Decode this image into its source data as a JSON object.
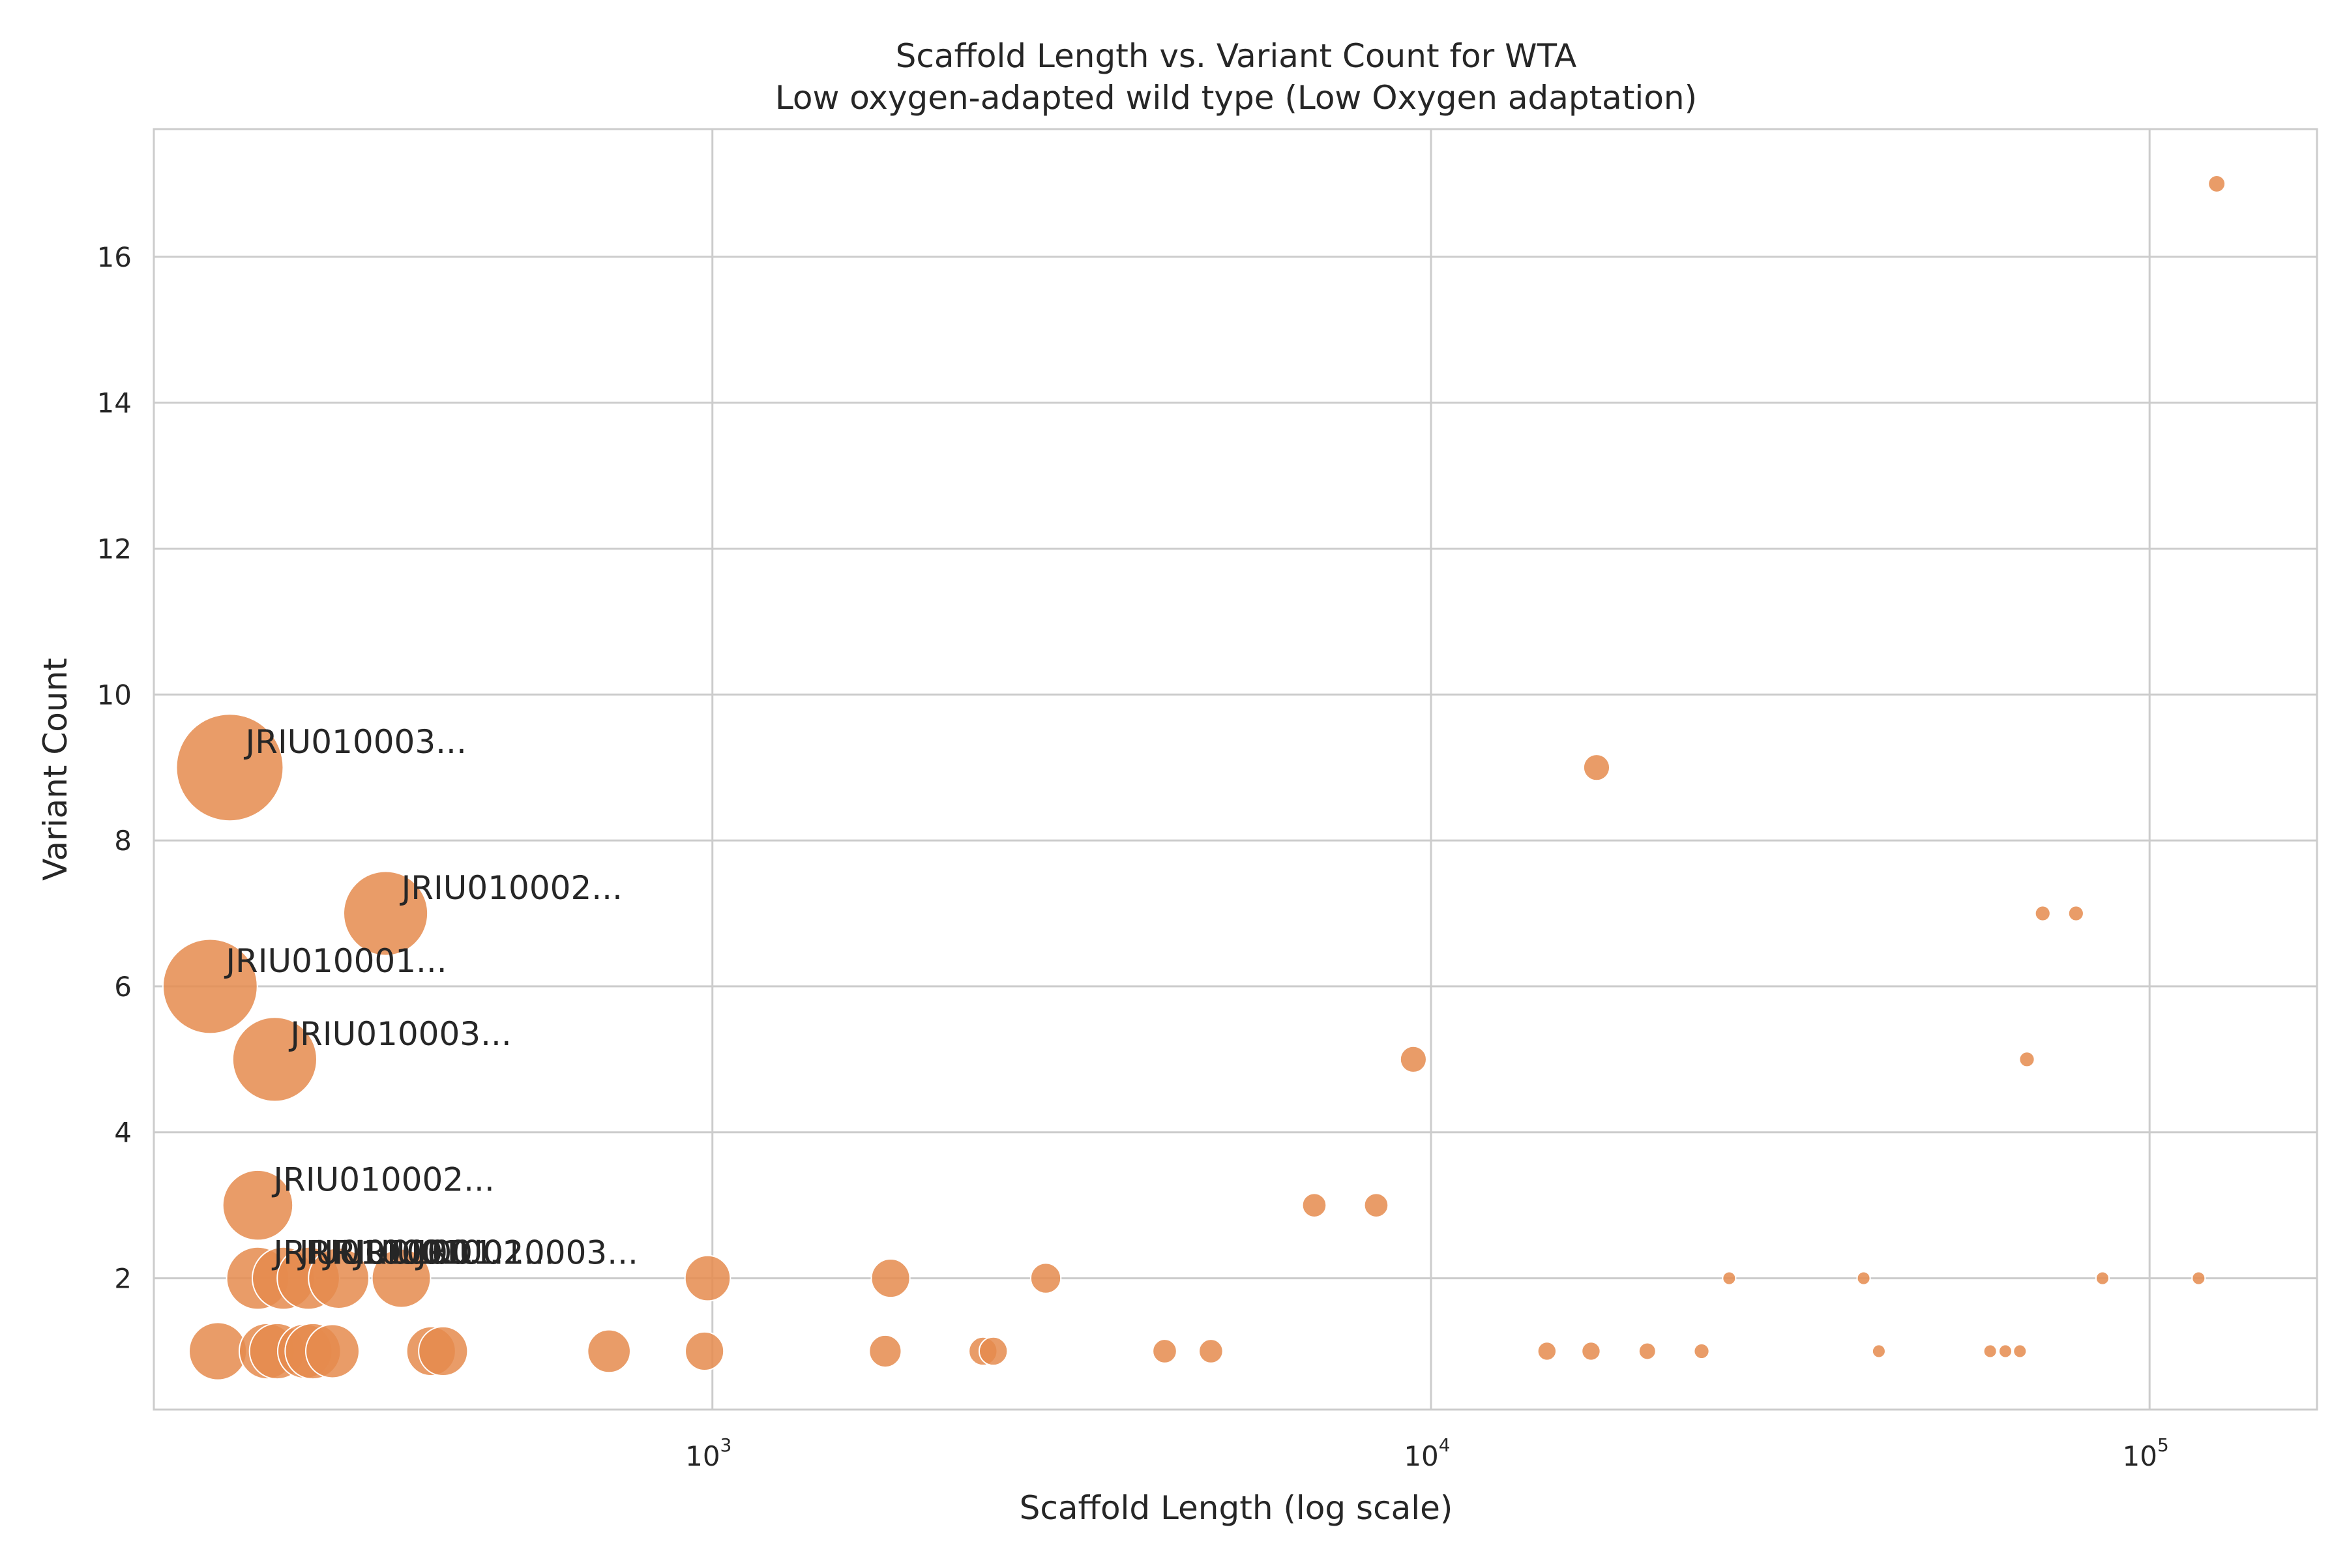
{
  "chart_data": {
    "type": "scatter",
    "title": "Scaffold Length vs. Variant Count for WTA",
    "subtitle": "Low oxygen-adapted wild type (Low Oxygen adaptation)",
    "xlabel": "Scaffold Length (log scale)",
    "ylabel": "Variant Count",
    "x_scale": "log",
    "xlim": [
      167,
      171000
    ],
    "ylim": [
      0.2,
      17.75
    ],
    "x_ticks": [
      {
        "value": 1000,
        "base": "10",
        "exp": "3"
      },
      {
        "value": 10000,
        "base": "10",
        "exp": "4"
      },
      {
        "value": 100000,
        "base": "10",
        "exp": "5"
      }
    ],
    "y_ticks": [
      2,
      4,
      6,
      8,
      10,
      12,
      14,
      16
    ],
    "grid": true,
    "marker_color": "#e58b4d",
    "marker_edge_color": "#ffffff",
    "points": [
      {
        "x": 213,
        "y": 9,
        "size": 1.0
      },
      {
        "x": 351,
        "y": 7,
        "size": 0.62
      },
      {
        "x": 200,
        "y": 6,
        "size": 0.78
      },
      {
        "x": 246,
        "y": 5,
        "size": 0.62
      },
      {
        "x": 233,
        "y": 3,
        "size": 0.43
      },
      {
        "x": 233,
        "y": 2,
        "size": 0.34
      },
      {
        "x": 253,
        "y": 2,
        "size": 0.34
      },
      {
        "x": 274,
        "y": 2,
        "size": 0.34
      },
      {
        "x": 302,
        "y": 2,
        "size": 0.32
      },
      {
        "x": 369,
        "y": 2,
        "size": 0.3
      },
      {
        "x": 985,
        "y": 2,
        "size": 0.18
      },
      {
        "x": 1770,
        "y": 2,
        "size": 0.13
      },
      {
        "x": 2910,
        "y": 2,
        "size": 0.08
      },
      {
        "x": 205,
        "y": 1,
        "size": 0.29
      },
      {
        "x": 240,
        "y": 1,
        "size": 0.27
      },
      {
        "x": 248,
        "y": 1,
        "size": 0.27
      },
      {
        "x": 271,
        "y": 1,
        "size": 0.26
      },
      {
        "x": 278,
        "y": 1,
        "size": 0.27
      },
      {
        "x": 296,
        "y": 1,
        "size": 0.25
      },
      {
        "x": 406,
        "y": 1,
        "size": 0.21
      },
      {
        "x": 422,
        "y": 1,
        "size": 0.21
      },
      {
        "x": 718,
        "y": 1,
        "size": 0.16
      },
      {
        "x": 975,
        "y": 1,
        "size": 0.13
      },
      {
        "x": 1740,
        "y": 1,
        "size": 0.09
      },
      {
        "x": 2380,
        "y": 1,
        "size": 0.07
      },
      {
        "x": 2460,
        "y": 1,
        "size": 0.07
      },
      {
        "x": 4260,
        "y": 1,
        "size": 0.05
      },
      {
        "x": 4940,
        "y": 1,
        "size": 0.05
      },
      {
        "x": 14500,
        "y": 1,
        "size": 0.03
      },
      {
        "x": 16700,
        "y": 1,
        "size": 0.03
      },
      {
        "x": 20000,
        "y": 1,
        "size": 0.025
      },
      {
        "x": 23800,
        "y": 1,
        "size": 0.02
      },
      {
        "x": 42000,
        "y": 1,
        "size": 0.015
      },
      {
        "x": 60000,
        "y": 1,
        "size": 0.015
      },
      {
        "x": 63000,
        "y": 1,
        "size": 0.015
      },
      {
        "x": 66000,
        "y": 1,
        "size": 0.015
      },
      {
        "x": 26000,
        "y": 2,
        "size": 0.015
      },
      {
        "x": 40000,
        "y": 2,
        "size": 0.015
      },
      {
        "x": 86000,
        "y": 2,
        "size": 0.015
      },
      {
        "x": 117000,
        "y": 2,
        "size": 0.015
      },
      {
        "x": 6880,
        "y": 3,
        "size": 0.05
      },
      {
        "x": 8390,
        "y": 3,
        "size": 0.05
      },
      {
        "x": 9450,
        "y": 5,
        "size": 0.06
      },
      {
        "x": 17000,
        "y": 9,
        "size": 0.06
      },
      {
        "x": 67500,
        "y": 5,
        "size": 0.02
      },
      {
        "x": 71000,
        "y": 7,
        "size": 0.02
      },
      {
        "x": 79000,
        "y": 7,
        "size": 0.02
      },
      {
        "x": 124000,
        "y": 17,
        "size": 0.025
      }
    ],
    "annotations": [
      {
        "text": "JRIU010003...",
        "x": 213,
        "y": 9
      },
      {
        "text": "JRIU010002...",
        "x": 351,
        "y": 7
      },
      {
        "text": "JRIU010001...",
        "x": 200,
        "y": 6
      },
      {
        "text": "JRIU010003...",
        "x": 246,
        "y": 5
      },
      {
        "text": "JRIU010002...",
        "x": 233,
        "y": 3
      },
      {
        "text": "JRIU01000...",
        "x": 233,
        "y": 2
      },
      {
        "text": "JRIU01000...",
        "x": 253,
        "y": 2
      },
      {
        "text": "JRIU01001...",
        "x": 274,
        "y": 2
      },
      {
        "text": "JRIU01002...",
        "x": 302,
        "y": 2
      },
      {
        "text": "JRIU010003...",
        "x": 369,
        "y": 2
      }
    ]
  }
}
